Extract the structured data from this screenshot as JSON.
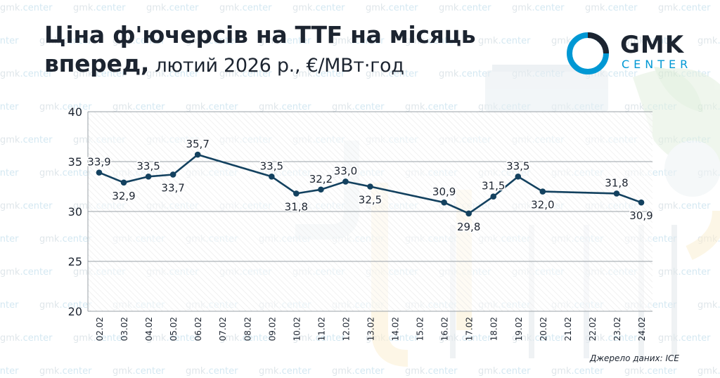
{
  "header": {
    "title_line1": "Ціна ф'ючерсів на TTF на місяць",
    "title_line2_bold": "вперед,",
    "title_line2_rest": " лютий 2026 р., €/МВт·год"
  },
  "logo": {
    "brand": "GMK",
    "brand_sub": "CENTER",
    "icon": "gmk-ring-logo-icon"
  },
  "watermark": {
    "text_a": "gmk",
    "text_b": ".center"
  },
  "source": "Джерело даних: ICE",
  "colors": {
    "line": "#13415f",
    "text": "#1c2430",
    "accent": "#0098d4",
    "grid": "#9aa1a7"
  },
  "chart_data": {
    "type": "line",
    "title": "Ціна ф'ючерсів на TTF на місяць вперед, лютий 2026 р., €/МВт·год",
    "xlabel": "",
    "ylabel": "",
    "ylim": [
      20,
      40
    ],
    "yticks": [
      "20",
      "25",
      "30",
      "35",
      "40"
    ],
    "grid": true,
    "categories": [
      "02.02",
      "03.02",
      "04.02",
      "05.02",
      "06.02",
      "07.02",
      "08.02",
      "09.02",
      "10.02",
      "11.02",
      "12.02",
      "13.02",
      "14.02",
      "15.02",
      "16.02",
      "17.02",
      "18.02",
      "19.02",
      "20.02",
      "21.02",
      "22.02",
      "23.02",
      "24.02"
    ],
    "series": [
      {
        "values": [
          33.9,
          32.9,
          33.5,
          33.7,
          35.7,
          null,
          null,
          33.5,
          31.8,
          32.2,
          33.0,
          32.5,
          null,
          null,
          30.9,
          29.8,
          31.5,
          33.5,
          32.0,
          null,
          null,
          31.8,
          30.9
        ]
      }
    ],
    "data_labels": [
      "33,9",
      "32,9",
      "33,5",
      "33,7",
      "35,7",
      "",
      "",
      "33,5",
      "31,8",
      "32,2",
      "33,0",
      "32,5",
      "",
      "",
      "30,9",
      "29,8",
      "31,5",
      "33,5",
      "32,0",
      "",
      "",
      "31,8",
      "30,9"
    ],
    "label_positions": [
      "above",
      "below",
      "above",
      "below",
      "above",
      "",
      "",
      "above",
      "below",
      "above",
      "above",
      "below",
      "",
      "",
      "above",
      "below",
      "above",
      "above",
      "below",
      "",
      "",
      "above",
      "below"
    ]
  }
}
